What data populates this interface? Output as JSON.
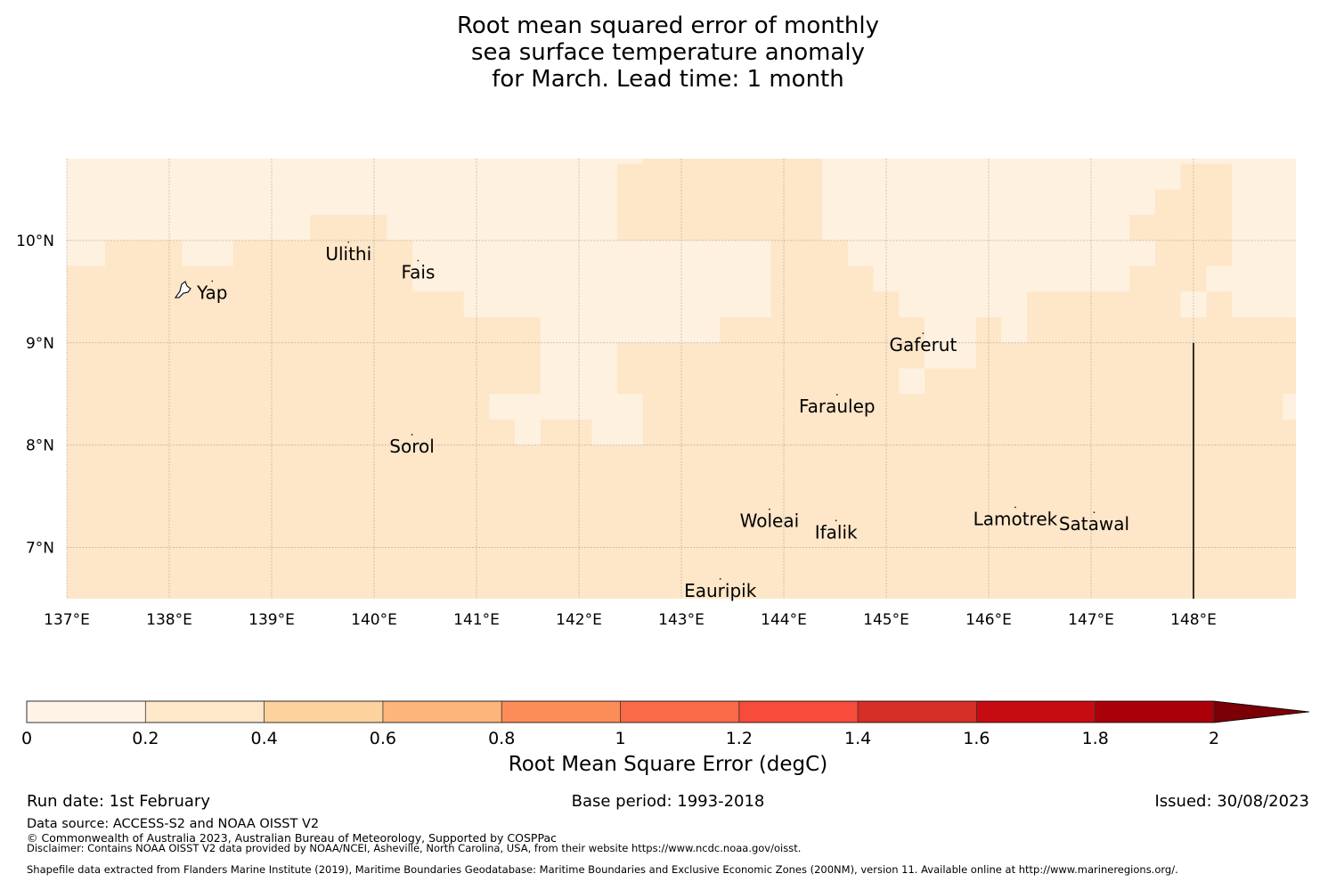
{
  "title": {
    "line1": "Root mean squared error of monthly",
    "line2": "sea surface temperature anomaly",
    "line3": "for March. Lead time: 1 month"
  },
  "map": {
    "lon_range": [
      137,
      149
    ],
    "lat_range": [
      6.5,
      10.8
    ],
    "lon_ticks": [
      {
        "value": 137,
        "label": "137°E"
      },
      {
        "value": 138,
        "label": "138°E"
      },
      {
        "value": 139,
        "label": "139°E"
      },
      {
        "value": 140,
        "label": "140°E"
      },
      {
        "value": 141,
        "label": "141°E"
      },
      {
        "value": 142,
        "label": "142°E"
      },
      {
        "value": 143,
        "label": "143°E"
      },
      {
        "value": 144,
        "label": "144°E"
      },
      {
        "value": 145,
        "label": "145°E"
      },
      {
        "value": 146,
        "label": "146°E"
      },
      {
        "value": 147,
        "label": "147°E"
      },
      {
        "value": 148,
        "label": "148°E"
      }
    ],
    "lat_ticks": [
      {
        "value": 10,
        "label": "10°N"
      },
      {
        "value": 9,
        "label": "9°N"
      },
      {
        "value": 8,
        "label": "8°N"
      },
      {
        "value": 7,
        "label": "7°N"
      }
    ],
    "colors": {
      "low": "#fff1e0",
      "mid": "#fee6c8"
    },
    "background_class": "mid",
    "low_cells": [
      {
        "lon": [
          137.0,
          149.0
        ],
        "lat": [
          10.0,
          10.8
        ]
      },
      {
        "lon": [
          137.0,
          137.375
        ],
        "lat": [
          9.75,
          10.0
        ]
      },
      {
        "lon": [
          138.125,
          138.625
        ],
        "lat": [
          9.75,
          10.0
        ]
      },
      {
        "lon": [
          140.375,
          143.875
        ],
        "lat": [
          9.5,
          10.0
        ]
      },
      {
        "lon": [
          140.875,
          143.875
        ],
        "lat": [
          9.25,
          9.5
        ]
      },
      {
        "lon": [
          141.625,
          143.375
        ],
        "lat": [
          9.0,
          9.25
        ]
      },
      {
        "lon": [
          141.625,
          142.375
        ],
        "lat": [
          8.5,
          9.0
        ]
      },
      {
        "lon": [
          141.125,
          142.375
        ],
        "lat": [
          8.25,
          8.5
        ]
      },
      {
        "lon": [
          142.125,
          142.625
        ],
        "lat": [
          8.0,
          8.5
        ]
      },
      {
        "lon": [
          141.375,
          141.625
        ],
        "lat": [
          8.0,
          8.25
        ]
      },
      {
        "lon": [
          144.625,
          147.625
        ],
        "lat": [
          9.75,
          10.0
        ]
      },
      {
        "lon": [
          144.875,
          147.375
        ],
        "lat": [
          9.5,
          9.75
        ]
      },
      {
        "lon": [
          145.125,
          146.375
        ],
        "lat": [
          9.25,
          9.5
        ]
      },
      {
        "lon": [
          145.375,
          145.875
        ],
        "lat": [
          9.0,
          9.25
        ]
      },
      {
        "lon": [
          145.375,
          145.875
        ],
        "lat": [
          8.75,
          9.0
        ]
      },
      {
        "lon": [
          145.125,
          145.375
        ],
        "lat": [
          8.5,
          8.75
        ]
      },
      {
        "lon": [
          146.125,
          146.375
        ],
        "lat": [
          9.0,
          9.25
        ]
      },
      {
        "lon": [
          148.375,
          149.0
        ],
        "lat": [
          9.25,
          10.0
        ]
      },
      {
        "lon": [
          148.125,
          148.375
        ],
        "lat": [
          9.5,
          9.75
        ]
      },
      {
        "lon": [
          147.875,
          148.125
        ],
        "lat": [
          9.25,
          9.5
        ]
      },
      {
        "lon": [
          148.875,
          149.0
        ],
        "lat": [
          8.25,
          8.5
        ]
      }
    ],
    "mid_cells": [
      {
        "lon": [
          142.375,
          142.625
        ],
        "lat": [
          10.0,
          10.75
        ]
      },
      {
        "lon": [
          142.625,
          144.375
        ],
        "lat": [
          10.0,
          10.8
        ]
      },
      {
        "lon": [
          144.125,
          144.375
        ],
        "lat": [
          10.75,
          10.8
        ]
      },
      {
        "lon": [
          144.375,
          144.375
        ],
        "lat": [
          10.0,
          10.75
        ]
      },
      {
        "lon": [
          144.125,
          144.375
        ],
        "lat": [
          10.0,
          10.75
        ]
      },
      {
        "lon": [
          139.375,
          140.125
        ],
        "lat": [
          10.0,
          10.25
        ]
      },
      {
        "lon": [
          147.375,
          147.625
        ],
        "lat": [
          10.0,
          10.25
        ]
      },
      {
        "lon": [
          147.625,
          147.875
        ],
        "lat": [
          10.0,
          10.5
        ]
      },
      {
        "lon": [
          147.875,
          148.375
        ],
        "lat": [
          10.0,
          10.75
        ]
      }
    ],
    "boundary_line": {
      "lon": 148,
      "lat": [
        6.5,
        9.0
      ]
    },
    "places": [
      {
        "name": "Ulithi",
        "lon": 139.75,
        "lat": 9.87
      },
      {
        "name": "Fais",
        "lon": 140.43,
        "lat": 9.69
      },
      {
        "name": "Yap",
        "lon": 138.42,
        "lat": 9.49
      },
      {
        "name": "Gaferut",
        "lon": 145.36,
        "lat": 8.98
      },
      {
        "name": "Faraulep",
        "lon": 144.52,
        "lat": 8.38
      },
      {
        "name": "Sorol",
        "lon": 140.37,
        "lat": 7.99
      },
      {
        "name": "Woleai",
        "lon": 143.86,
        "lat": 7.26
      },
      {
        "name": "Ifalik",
        "lon": 144.51,
        "lat": 7.15
      },
      {
        "name": "Lamotrek",
        "lon": 146.26,
        "lat": 7.28
      },
      {
        "name": "Satawal",
        "lon": 147.03,
        "lat": 7.23
      },
      {
        "name": "Eauripik",
        "lon": 143.38,
        "lat": 6.58
      }
    ]
  },
  "colorbar": {
    "title": "Root Mean Square Error (degC)",
    "boundaries": [
      0,
      0.2,
      0.4,
      0.6,
      0.8,
      1,
      1.2,
      1.4,
      1.6,
      1.8,
      2
    ],
    "tick_labels": [
      "0",
      "0.2",
      "0.4",
      "0.6",
      "0.8",
      "1",
      "1.2",
      "1.4",
      "1.6",
      "1.8",
      "2"
    ],
    "colors": [
      "#fff4e6",
      "#ffe7c9",
      "#fdd29d",
      "#fdb57c",
      "#fc8d58",
      "#fa6a49",
      "#f74b3b",
      "#d62f25",
      "#c70c11",
      "#aa0009"
    ],
    "extend_color": "#7a0005"
  },
  "footer": {
    "run_date": "Run date: 1st February",
    "base_period": "Base period: 1993-2018",
    "issued": "Issued: 30/08/2023",
    "data_source": "Data source: ACCESS-S2 and NOAA OISST V2",
    "copyright": "© Commonwealth of Australia 2023, Australian Bureau of Meteorology, Supported by COSPPac",
    "disclaimer": "Disclaimer: Contains NOAA OISST V2 data provided by NOAA/NCEI, Asheville, North Carolina, USA, from their website https://www.ncdc.noaa.gov/oisst.",
    "shapefile": "Shapefile data extracted from Flanders Marine Institute (2019), Maritime Boundaries Geodatabase: Maritime Boundaries and Exclusive Economic Zones (200NM), version 11. Available online at http://www.marineregions.org/."
  }
}
